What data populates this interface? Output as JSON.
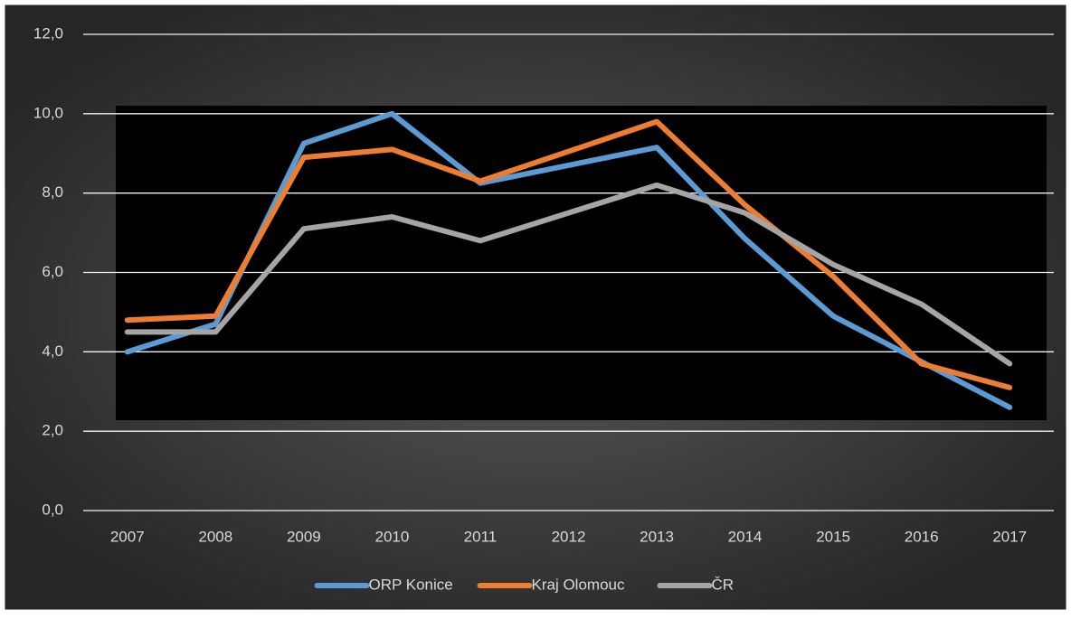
{
  "chart_data": {
    "type": "line",
    "categories": [
      "2007",
      "2008",
      "2009",
      "2010",
      "2011",
      "2012",
      "2013",
      "2014",
      "2015",
      "2016",
      "2017"
    ],
    "series": [
      {
        "name": "ORP Konice",
        "color": "#5b9bd5",
        "values": [
          4.0,
          4.7,
          9.25,
          10.0,
          8.25,
          8.7,
          9.15,
          6.85,
          4.9,
          3.75,
          2.6
        ]
      },
      {
        "name": "Kraj Olomouc",
        "color": "#ed7d31",
        "values": [
          4.8,
          4.9,
          8.9,
          9.1,
          8.3,
          9.05,
          9.8,
          7.7,
          5.9,
          3.7,
          3.1
        ]
      },
      {
        "name": "ČR",
        "color": "#a5a5a5",
        "values": [
          4.5,
          4.5,
          7.1,
          7.4,
          6.8,
          7.5,
          8.2,
          7.5,
          6.2,
          5.2,
          3.7
        ]
      }
    ],
    "ylim": [
      0,
      12
    ],
    "yticks": [
      {
        "value": 0,
        "label": "0,0"
      },
      {
        "value": 2,
        "label": "2,0"
      },
      {
        "value": 4,
        "label": "4,0"
      },
      {
        "value": 6,
        "label": "6,0"
      },
      {
        "value": 8,
        "label": "8,0"
      },
      {
        "value": 10,
        "label": "10,0"
      },
      {
        "value": 12,
        "label": "12,0"
      }
    ],
    "grid": true,
    "legend": "bottom"
  }
}
